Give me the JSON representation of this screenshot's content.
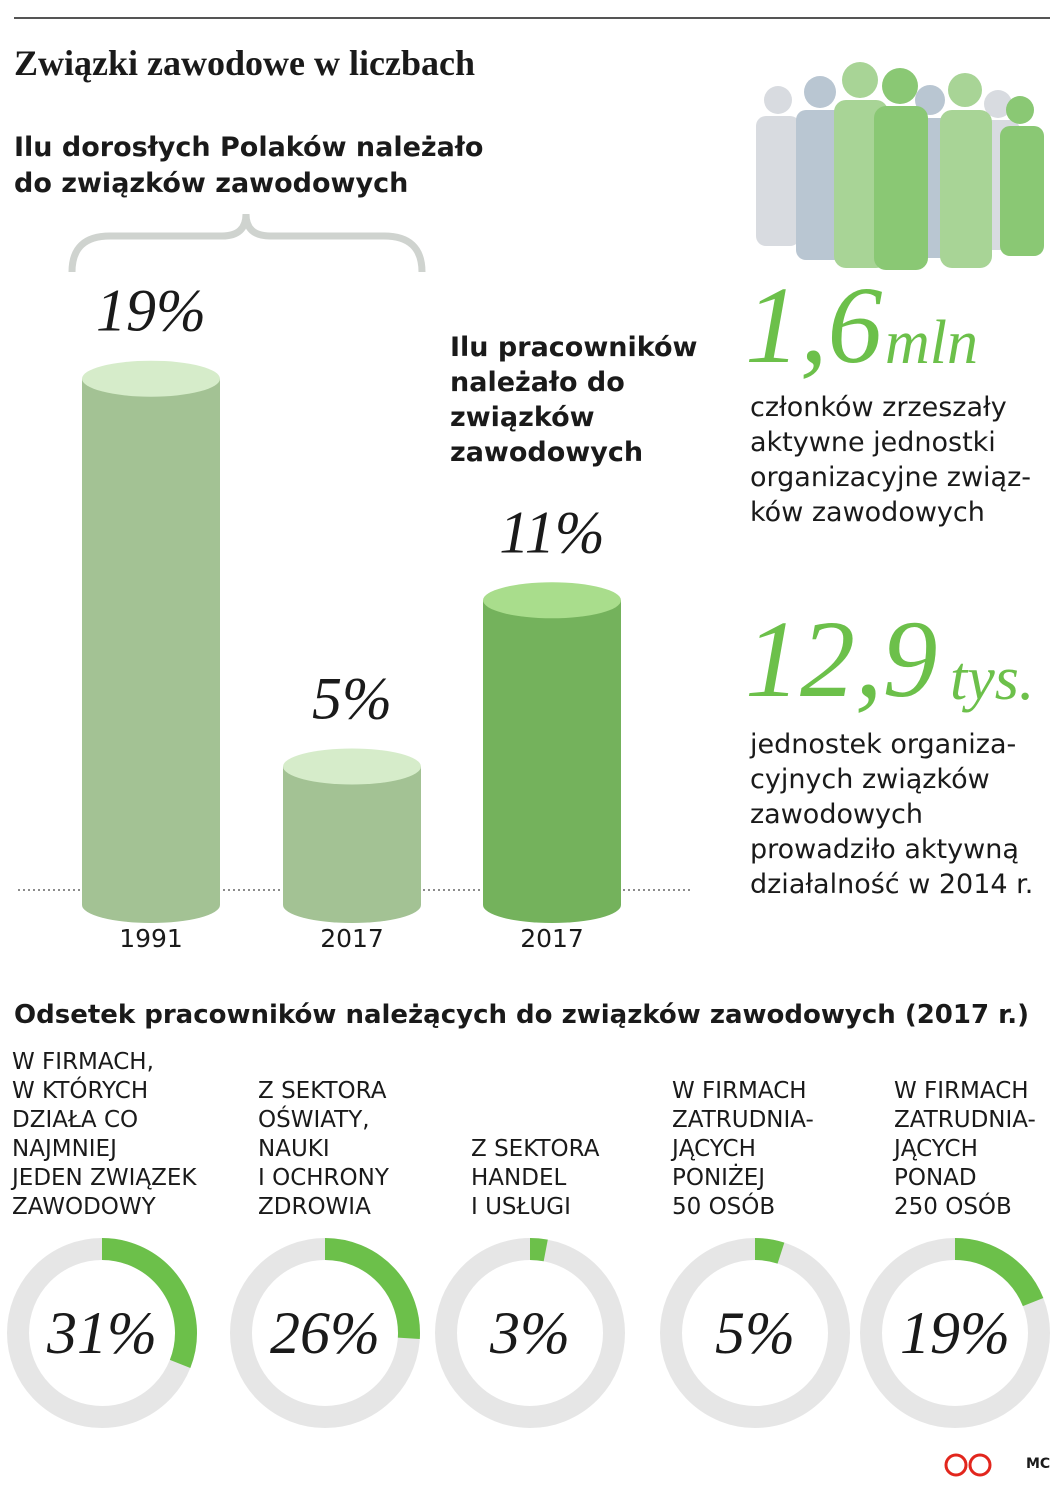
{
  "title": "Związki zawodowe w liczbach",
  "chart_data": [
    {
      "type": "cylinder-bar",
      "title": "Ilu dorosłych Polaków należało do związków zawodowych",
      "annotation": "Ilu pracowników należało do związków zawodowych",
      "categories": [
        "1991",
        "2017",
        "2017"
      ],
      "values": [
        19,
        5,
        11
      ],
      "value_labels": [
        "19%",
        "5%",
        "11%"
      ],
      "colors": [
        "#a3c294",
        "#a3c294",
        "#74b25c"
      ]
    },
    {
      "type": "donut",
      "title": "Odsetek pracowników należących do związków zawodowych (2017 r.)",
      "categories": [
        "W FIRMACH,\nW KTÓRYCH\nDZIAŁA CO\nNAJMNIEJ\nJEDEN ZWIĄZEK\nZAWODOWY",
        "Z SEKTORA\nOŚWIATY,\nNAUKI\nI OCHRONY\nZDROWIA",
        "Z SEKTORA\nHANDEL\nI USŁUGI",
        "W FIRMACH\nZATRUDNIA-\nJĄCYCH\nPONIŻEJ\n50 OSÓB",
        "W FIRMACH\nZATRUDNIA-\nJĄCYCH\nPONAD\n250 OSÓB"
      ],
      "values": [
        31,
        26,
        3,
        5,
        19
      ],
      "value_labels": [
        "31%",
        "26%",
        "3%",
        "5%",
        "19%"
      ],
      "color": "#6cc04a",
      "track_color": "#e6e6e6"
    }
  ],
  "facts": [
    {
      "number": "1,6",
      "unit": "mln",
      "text": "członków zrzeszały\naktywne jednostki\norganizacyjne związ-\nków zawodowych"
    },
    {
      "number": "12,9",
      "unit": "tys.",
      "text": "jednostek organiza-\ncyjnych związków\nzawodowych\nprowadziło aktywną\ndziałalność w 2014 r."
    }
  ],
  "credit": "MC"
}
